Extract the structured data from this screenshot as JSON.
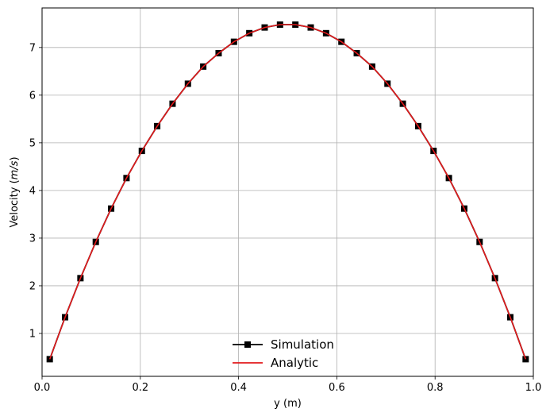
{
  "chart_data": {
    "type": "line",
    "title": "",
    "xlabel": "y (m)",
    "ylabel_prefix": "Velocity (",
    "ylabel_unit": "m/s",
    "ylabel_suffix": ")",
    "xlim": [
      0.0,
      1.0
    ],
    "ylim": [
      0.1,
      7.83
    ],
    "xticks": [
      0.0,
      0.2,
      0.4,
      0.6,
      0.8,
      1.0
    ],
    "xtick_labels": [
      "0.0",
      "0.2",
      "0.4",
      "0.6",
      "0.8",
      "1.0"
    ],
    "yticks": [
      1,
      2,
      3,
      4,
      5,
      6,
      7
    ],
    "ytick_labels": [
      "1",
      "2",
      "3",
      "4",
      "5",
      "6",
      "7"
    ],
    "grid": true,
    "legend_placement": "lower center",
    "series": [
      {
        "name": "Simulation",
        "color": "#000000",
        "marker": "square",
        "x": [
          0.015625,
          0.046875,
          0.078125,
          0.109375,
          0.140625,
          0.171875,
          0.203125,
          0.234375,
          0.265625,
          0.296875,
          0.328125,
          0.359375,
          0.390625,
          0.421875,
          0.453125,
          0.484375,
          0.515625,
          0.546875,
          0.578125,
          0.609375,
          0.640625,
          0.671875,
          0.703125,
          0.734375,
          0.765625,
          0.796875,
          0.828125,
          0.859375,
          0.890625,
          0.921875,
          0.953125,
          0.984375
        ],
        "y": [
          0.46,
          1.34,
          2.16,
          2.92,
          3.62,
          4.26,
          4.83,
          5.35,
          5.82,
          6.24,
          6.6,
          6.88,
          7.12,
          7.3,
          7.42,
          7.48,
          7.48,
          7.42,
          7.3,
          7.12,
          6.88,
          6.6,
          6.24,
          5.82,
          5.35,
          4.83,
          4.26,
          3.62,
          2.92,
          2.16,
          1.34,
          0.46
        ]
      },
      {
        "name": "Analytic",
        "color": "#e31a1c",
        "marker": "none",
        "x": [
          0.015625,
          0.046875,
          0.078125,
          0.109375,
          0.140625,
          0.171875,
          0.203125,
          0.234375,
          0.265625,
          0.296875,
          0.328125,
          0.359375,
          0.390625,
          0.421875,
          0.453125,
          0.484375,
          0.515625,
          0.546875,
          0.578125,
          0.609375,
          0.640625,
          0.671875,
          0.703125,
          0.734375,
          0.765625,
          0.796875,
          0.828125,
          0.859375,
          0.890625,
          0.921875,
          0.953125,
          0.984375
        ],
        "y": [
          0.46,
          1.34,
          2.16,
          2.92,
          3.62,
          4.26,
          4.83,
          5.35,
          5.82,
          6.24,
          6.6,
          6.88,
          7.12,
          7.3,
          7.42,
          7.48,
          7.48,
          7.42,
          7.3,
          7.12,
          6.88,
          6.6,
          6.24,
          5.82,
          5.35,
          4.83,
          4.26,
          3.62,
          2.92,
          2.16,
          1.34,
          0.46
        ]
      }
    ]
  }
}
